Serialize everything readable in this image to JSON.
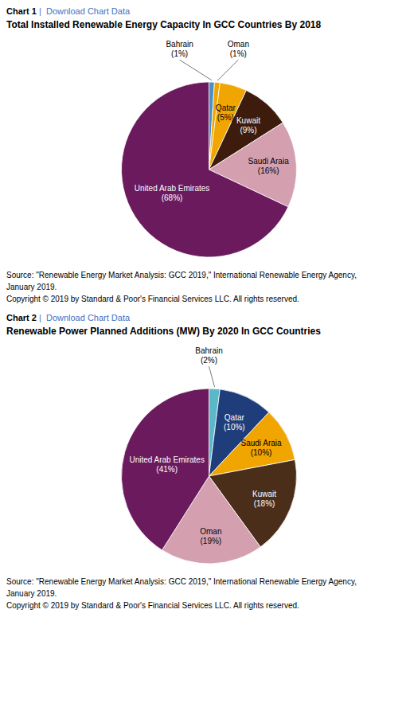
{
  "chart_data": [
    {
      "type": "pie",
      "subtitle": "Chart 1",
      "title": "Total Installed Renewable Energy Capacity In GCC Countries By 2018",
      "annotations": [
        {
          "text": " |  Download Chart Data",
          "color": "#4472c4"
        },
        {
          "text": "Source: \"Renewable Energy Market Analysis: GCC 2019,\" International Renewable Energy Agency,\nJanuary 2019.\nCopyright © 2019 by Standard & Poor's Financial Services LLC. All rights reserved."
        }
      ],
      "categories": [
        "Bahrain",
        "Oman",
        "Qatar",
        "Kuwait",
        "Saudi Araia",
        "United Arab Emirates"
      ],
      "values": [
        1,
        1,
        5,
        9,
        16,
        68
      ],
      "value_labels": [
        "(1%)",
        "(1%)",
        "(5%)",
        "(9%)",
        "(16%)",
        "(68%)"
      ],
      "colors": [
        "#4a90c4",
        "#f0a500",
        "#f0a500",
        "#3d1c0e",
        "#d4a0b0",
        "#6b1a5e"
      ],
      "data_labels": true
    },
    {
      "type": "pie",
      "subtitle": "Chart 2",
      "title": "Renewable Power Planned Additions (MW) By 2020 In GCC Countries",
      "annotations": [
        {
          "text": " |  Download Chart Data",
          "color": "#4472c4"
        },
        {
          "text": "Source: \"Renewable Energy Market Analysis: GCC 2019,\" International Renewable Energy Agency,\nJanuary 2019.\nCopyright © 2019 by Standard & Poor's Financial Services LLC. All rights reserved."
        }
      ],
      "categories": [
        "Bahrain",
        "Qatar",
        "Saudi Araia",
        "Kuwait",
        "Oman",
        "United Arab Emirates"
      ],
      "values": [
        2,
        10,
        10,
        18,
        19,
        41
      ],
      "value_labels": [
        "(2%)",
        "(10%)",
        "(10%)",
        "(18%)",
        "(19%)",
        "(41%)"
      ],
      "colors": [
        "#5bb8c8",
        "#1f3d7a",
        "#f0a500",
        "#4a2e1a",
        "#d4a0b0",
        "#6b1a5e"
      ],
      "data_labels": true
    }
  ]
}
